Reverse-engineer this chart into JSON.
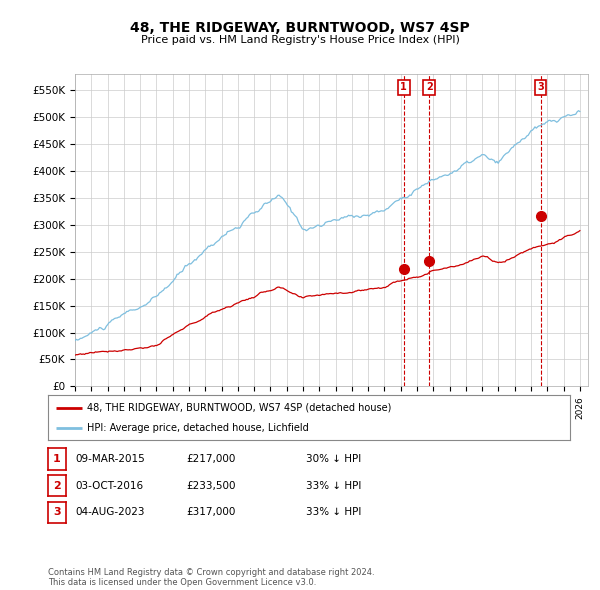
{
  "title": "48, THE RIDGEWAY, BURNTWOOD, WS7 4SP",
  "subtitle": "Price paid vs. HM Land Registry's House Price Index (HPI)",
  "ylabel_ticks": [
    "£0",
    "£50K",
    "£100K",
    "£150K",
    "£200K",
    "£250K",
    "£300K",
    "£350K",
    "£400K",
    "£450K",
    "£500K",
    "£550K"
  ],
  "ytick_values": [
    0,
    50000,
    100000,
    150000,
    200000,
    250000,
    300000,
    350000,
    400000,
    450000,
    500000,
    550000
  ],
  "ylim": [
    0,
    580000
  ],
  "xlim_start": 1995.0,
  "xlim_end": 2026.5,
  "hpi_color": "#7fbfdf",
  "price_color": "#cc0000",
  "vline_color": "#cc0000",
  "grid_color": "#cccccc",
  "bg_color": "#ffffff",
  "legend_label_red": "48, THE RIDGEWAY, BURNTWOOD, WS7 4SP (detached house)",
  "legend_label_blue": "HPI: Average price, detached house, Lichfield",
  "sale1_date": 2015.19,
  "sale1_price": 217000,
  "sale1_label": "1",
  "sale2_date": 2016.75,
  "sale2_price": 233500,
  "sale2_label": "2",
  "sale3_date": 2023.59,
  "sale3_price": 317000,
  "sale3_label": "3",
  "table_rows": [
    [
      "1",
      "09-MAR-2015",
      "£217,000",
      "30% ↓ HPI"
    ],
    [
      "2",
      "03-OCT-2016",
      "£233,500",
      "33% ↓ HPI"
    ],
    [
      "3",
      "04-AUG-2023",
      "£317,000",
      "33% ↓ HPI"
    ]
  ],
  "footer_text": "Contains HM Land Registry data © Crown copyright and database right 2024.\nThis data is licensed under the Open Government Licence v3.0.",
  "xtick_years": [
    1995,
    1996,
    1997,
    1998,
    1999,
    2000,
    2001,
    2002,
    2003,
    2004,
    2005,
    2006,
    2007,
    2008,
    2009,
    2010,
    2011,
    2012,
    2013,
    2014,
    2015,
    2016,
    2017,
    2018,
    2019,
    2020,
    2021,
    2022,
    2023,
    2024,
    2025,
    2026
  ]
}
